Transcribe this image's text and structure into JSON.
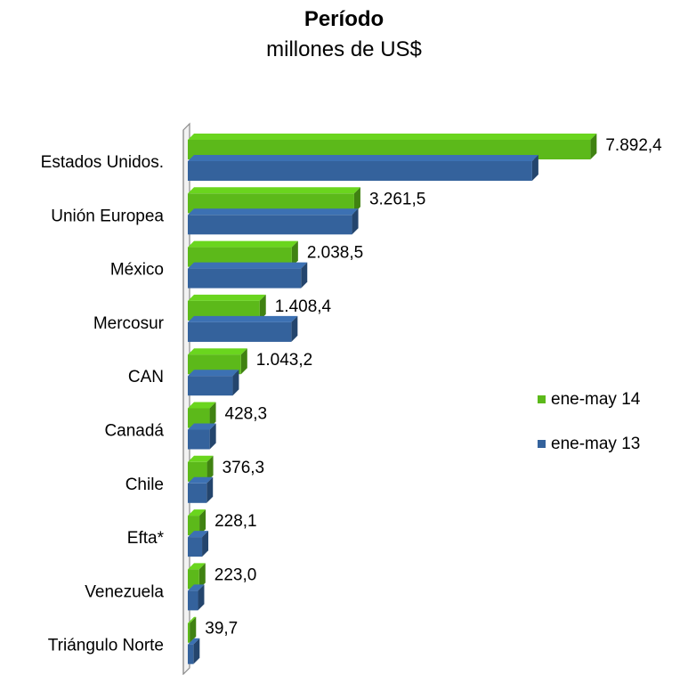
{
  "chart_data": {
    "type": "bar",
    "orientation": "horizontal",
    "title": "Período",
    "subtitle": "millones de US$",
    "categories": [
      "Estados Unidos.",
      "Unión Europea",
      "México",
      "Mercosur",
      "CAN",
      "Canadá",
      "Chile",
      "Efta*",
      "Venezuela",
      "Triángulo Norte"
    ],
    "series": [
      {
        "name": "ene-may 14",
        "color": "#5cb91a",
        "values": [
          7892.4,
          3261.5,
          2038.5,
          1408.4,
          1043.2,
          428.3,
          376.3,
          228.1,
          223.0,
          39.7
        ],
        "labels": [
          "7.892,4",
          "3.261,5",
          "2.038,5",
          "1.408,4",
          "1.043,2",
          "428,3",
          "376,3",
          "228,1",
          "223,0",
          "39,7"
        ]
      },
      {
        "name": "ene-may 13",
        "color": "#34629c",
        "values": [
          6750,
          3220,
          2220,
          2030,
          880,
          430,
          370,
          280,
          200,
          110
        ]
      }
    ],
    "xlim": [
      0,
      8200
    ],
    "legend_position": "right",
    "grid": false,
    "style": "3d"
  }
}
